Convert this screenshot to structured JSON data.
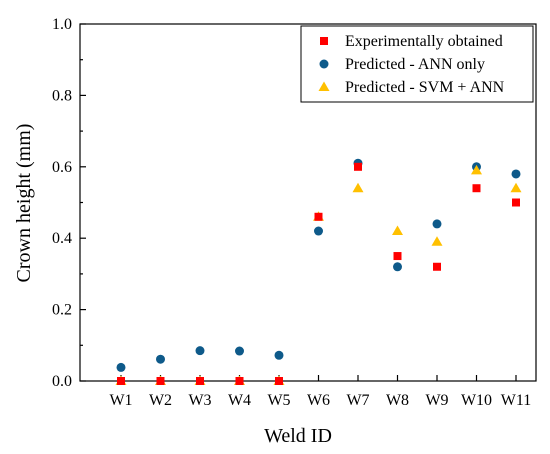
{
  "chart_data": {
    "type": "scatter",
    "title": "",
    "xlabel": "Weld ID",
    "ylabel": "Crown height (mm)",
    "categories": [
      "W1",
      "W2",
      "W3",
      "W4",
      "W5",
      "W6",
      "W7",
      "W8",
      "W9",
      "W10",
      "W11"
    ],
    "ylim": [
      0,
      1.0
    ],
    "yticks": [
      "0.0",
      "0.2",
      "0.4",
      "0.6",
      "0.8",
      "1.0"
    ],
    "grid": false,
    "legend_position": "top-right",
    "series": [
      {
        "name": "Experimentally obtained",
        "marker": "square",
        "color": "#ff0000",
        "values": [
          0.0,
          0.0,
          0.0,
          0.0,
          0.0,
          0.46,
          0.6,
          0.35,
          0.32,
          0.54,
          0.5
        ]
      },
      {
        "name": "Predicted - ANN only",
        "marker": "circle",
        "color": "#0e5a8a",
        "values": [
          0.038,
          0.061,
          0.085,
          0.084,
          0.072,
          0.42,
          0.61,
          0.32,
          0.44,
          0.6,
          0.58
        ]
      },
      {
        "name": "Predicted - SVM + ANN",
        "marker": "triangle",
        "color": "#ffc000",
        "values": [
          0.0,
          0.0,
          0.0,
          0.0,
          0.0,
          0.46,
          0.54,
          0.42,
          0.39,
          0.59,
          0.54
        ]
      }
    ]
  }
}
